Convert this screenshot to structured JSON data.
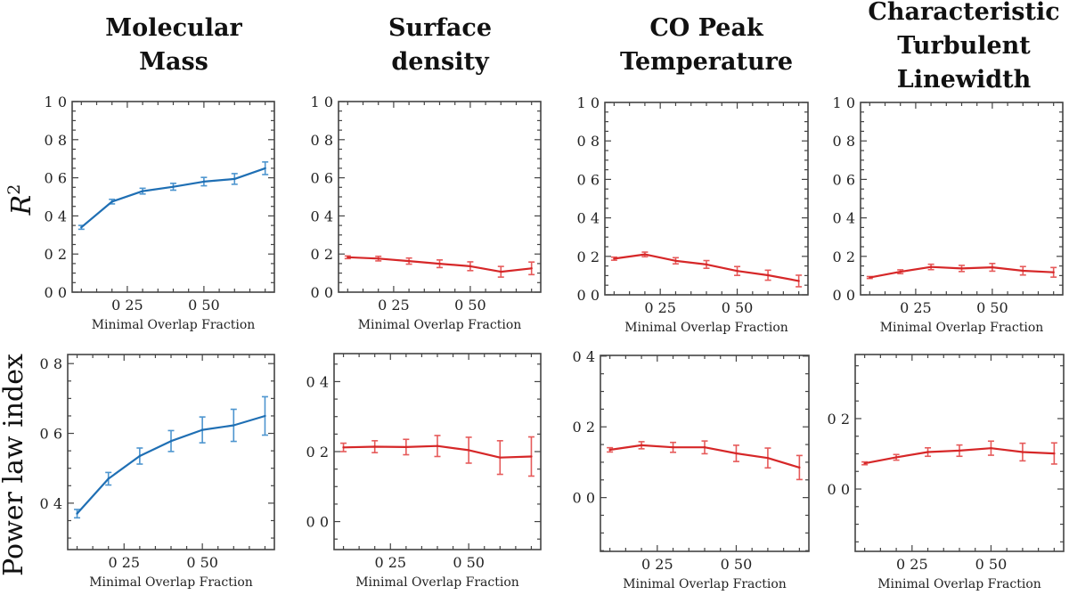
{
  "figure": {
    "column_titles": [
      [
        "Molecular",
        "Mass"
      ],
      [
        "Surface",
        "density"
      ],
      [
        "CO Peak",
        "Temperature"
      ],
      [
        "Characteristic",
        "Turbulent",
        "Linewidth"
      ]
    ],
    "row_labels": [
      "R2",
      "Power law index"
    ],
    "row_label_display": {
      "r2_base": "R",
      "r2_sup": "2",
      "power": "Power law index"
    },
    "colors": {
      "blue": "#1f6fb4",
      "red": "#d62728",
      "axis": "#444444"
    }
  },
  "chart_data": [
    {
      "type": "line",
      "panel": "r2-molecular-mass",
      "row": 0,
      "col": 0,
      "title": "Molecular Mass",
      "xlabel": "Minimal Overlap Fraction",
      "ylabel": "R^2",
      "color": "blue",
      "x": [
        0.1,
        0.2,
        0.3,
        0.4,
        0.5,
        0.6,
        0.7
      ],
      "y": [
        0.34,
        0.475,
        0.53,
        0.553,
        0.58,
        0.594,
        0.65
      ],
      "yerr": [
        0.01,
        0.012,
        0.015,
        0.018,
        0.022,
        0.028,
        0.033
      ],
      "xlim": [
        0.07,
        0.73
      ],
      "ylim": [
        0.0,
        1.0
      ],
      "xticks": [
        0.25,
        0.5
      ],
      "xtick_labels": [
        "0 25",
        "0 50"
      ],
      "yticks": [
        0.0,
        0.2,
        0.4,
        0.6,
        0.8,
        1.0
      ],
      "ytick_labels": [
        "0 0",
        "0 2",
        "0 4",
        "0 6",
        "0 8",
        "1 0"
      ]
    },
    {
      "type": "line",
      "panel": "r2-surface-density",
      "row": 0,
      "col": 1,
      "title": "Surface density",
      "xlabel": "Minimal Overlap Fraction",
      "ylabel": "",
      "color": "red",
      "x": [
        0.1,
        0.2,
        0.3,
        0.4,
        0.5,
        0.6,
        0.7
      ],
      "y": [
        0.183,
        0.176,
        0.163,
        0.149,
        0.136,
        0.107,
        0.125
      ],
      "yerr": [
        0.007,
        0.012,
        0.016,
        0.02,
        0.023,
        0.028,
        0.033
      ],
      "xlim": [
        0.07,
        0.73
      ],
      "ylim": [
        0.0,
        1.0
      ],
      "xticks": [
        0.25,
        0.5
      ],
      "xtick_labels": [
        "0 25",
        "0 50"
      ],
      "yticks": [
        0.0,
        0.2,
        0.4,
        0.6,
        0.8,
        1.0
      ],
      "ytick_labels": [
        "0 0",
        "0 2",
        "0 4",
        "0 6",
        "0 8",
        "1 0"
      ]
    },
    {
      "type": "line",
      "panel": "r2-co-peak-temperature",
      "row": 0,
      "col": 2,
      "title": "CO Peak Temperature",
      "xlabel": "Minimal Overlap Fraction",
      "ylabel": "",
      "color": "red",
      "x": [
        0.1,
        0.2,
        0.3,
        0.4,
        0.5,
        0.6,
        0.7
      ],
      "y": [
        0.188,
        0.21,
        0.177,
        0.158,
        0.124,
        0.102,
        0.072
      ],
      "yerr": [
        0.008,
        0.012,
        0.016,
        0.02,
        0.023,
        0.026,
        0.03
      ],
      "xlim": [
        0.07,
        0.73
      ],
      "ylim": [
        0.0,
        1.0
      ],
      "xticks": [
        0.25,
        0.5
      ],
      "xtick_labels": [
        "0 25",
        "0 50"
      ],
      "yticks": [
        0.0,
        0.2,
        0.4,
        0.6,
        0.8,
        1.0
      ],
      "ytick_labels": [
        "0 0",
        "0 2",
        "0 4",
        "0 6",
        "0 8",
        "1 0"
      ]
    },
    {
      "type": "line",
      "panel": "r2-turbulent-linewidth",
      "row": 0,
      "col": 3,
      "title": "Characteristic Turbulent Linewidth",
      "xlabel": "Minimal Overlap Fraction",
      "ylabel": "",
      "color": "red",
      "x": [
        0.1,
        0.2,
        0.3,
        0.4,
        0.5,
        0.6,
        0.7
      ],
      "y": [
        0.09,
        0.12,
        0.145,
        0.137,
        0.143,
        0.125,
        0.117
      ],
      "yerr": [
        0.005,
        0.01,
        0.014,
        0.016,
        0.02,
        0.022,
        0.025
      ],
      "xlim": [
        0.07,
        0.73
      ],
      "ylim": [
        0.0,
        1.0
      ],
      "xticks": [
        0.25,
        0.5
      ],
      "xtick_labels": [
        "0 25",
        "0 50"
      ],
      "yticks": [
        0.0,
        0.2,
        0.4,
        0.6,
        0.8,
        1.0
      ],
      "ytick_labels": [
        "0 0",
        "0 2",
        "0 4",
        "0 6",
        "0 8",
        "1 0"
      ]
    },
    {
      "type": "line",
      "panel": "power-molecular-mass",
      "row": 1,
      "col": 0,
      "title": "",
      "xlabel": "Minimal Overlap Fraction",
      "ylabel": "Power law index",
      "color": "blue",
      "x": [
        0.1,
        0.2,
        0.3,
        0.4,
        0.5,
        0.6,
        0.7
      ],
      "y": [
        0.37,
        0.47,
        0.535,
        0.578,
        0.61,
        0.623,
        0.65
      ],
      "yerr": [
        0.012,
        0.018,
        0.023,
        0.03,
        0.037,
        0.046,
        0.055
      ],
      "xlim": [
        0.07,
        0.73
      ],
      "ylim": [
        0.267,
        0.826
      ],
      "xticks": [
        0.25,
        0.5
      ],
      "xtick_labels": [
        "0 25",
        "0 50"
      ],
      "yticks": [
        0.4,
        0.6,
        0.8
      ],
      "ytick_labels": [
        "0 4",
        "0 6",
        "0 8"
      ],
      "minor_yticks": [
        0.3,
        0.35,
        0.45,
        0.5,
        0.55,
        0.65,
        0.7,
        0.75
      ]
    },
    {
      "type": "line",
      "panel": "power-surface-density",
      "row": 1,
      "col": 1,
      "title": "",
      "xlabel": "Minimal Overlap Fraction",
      "ylabel": "",
      "color": "red",
      "x": [
        0.1,
        0.2,
        0.3,
        0.4,
        0.5,
        0.6,
        0.7
      ],
      "y": [
        0.212,
        0.214,
        0.213,
        0.216,
        0.204,
        0.183,
        0.186
      ],
      "yerr": [
        0.012,
        0.017,
        0.022,
        0.03,
        0.037,
        0.048,
        0.056
      ],
      "xlim": [
        0.07,
        0.73
      ],
      "ylim": [
        -0.08,
        0.48
      ],
      "xticks": [
        0.25,
        0.5
      ],
      "xtick_labels": [
        "0 25",
        "0 50"
      ],
      "yticks": [
        0.0,
        0.2,
        0.4
      ],
      "ytick_labels": [
        "0 0",
        "0 2",
        "0 4"
      ],
      "minor_yticks": [
        -0.05,
        0.05,
        0.1,
        0.15,
        0.25,
        0.3,
        0.35,
        0.45
      ]
    },
    {
      "type": "line",
      "panel": "power-co-peak-temperature",
      "row": 1,
      "col": 2,
      "title": "",
      "xlabel": "Minimal Overlap Fraction",
      "ylabel": "",
      "color": "red",
      "x": [
        0.1,
        0.2,
        0.3,
        0.4,
        0.5,
        0.6,
        0.7
      ],
      "y": [
        0.135,
        0.148,
        0.142,
        0.142,
        0.125,
        0.112,
        0.085
      ],
      "yerr": [
        0.006,
        0.01,
        0.014,
        0.018,
        0.023,
        0.028,
        0.034
      ],
      "xlim": [
        0.07,
        0.73
      ],
      "ylim": [
        -0.152,
        0.402
      ],
      "xticks": [
        0.25,
        0.5
      ],
      "xtick_labels": [
        "0 25",
        "0 50"
      ],
      "yticks": [
        0.0,
        0.2,
        0.4
      ],
      "ytick_labels": [
        "0 0",
        "0 2",
        "0 4"
      ],
      "minor_yticks": [
        -0.15,
        -0.1,
        -0.05,
        0.05,
        0.1,
        0.15,
        0.25,
        0.3,
        0.35
      ]
    },
    {
      "type": "line",
      "panel": "power-turbulent-linewidth",
      "row": 1,
      "col": 3,
      "title": "",
      "xlabel": "Minimal Overlap Fraction",
      "ylabel": "",
      "color": "red",
      "x": [
        0.1,
        0.2,
        0.3,
        0.4,
        0.5,
        0.6,
        0.7
      ],
      "y": [
        0.073,
        0.09,
        0.105,
        0.109,
        0.116,
        0.105,
        0.101
      ],
      "yerr": [
        0.004,
        0.008,
        0.012,
        0.016,
        0.02,
        0.025,
        0.03
      ],
      "xlim": [
        0.07,
        0.73
      ],
      "ylim": [
        -0.177,
        0.382
      ],
      "xticks": [
        0.25,
        0.5
      ],
      "xtick_labels": [
        "0 25",
        "0 50"
      ],
      "yticks": [
        0.0,
        0.2
      ],
      "ytick_labels": [
        "0 0",
        "0 2"
      ],
      "minor_yticks": [
        -0.15,
        -0.1,
        -0.05,
        0.05,
        0.1,
        0.15,
        0.25,
        0.3,
        0.35
      ]
    }
  ]
}
